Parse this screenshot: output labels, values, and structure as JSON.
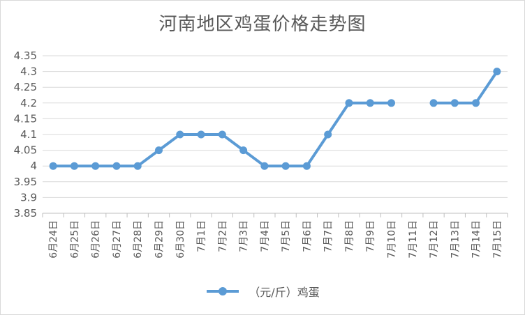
{
  "chart_data": {
    "type": "line",
    "title": "河南地区鸡蛋价格走势图",
    "xlabel": "",
    "ylabel": "",
    "categories": [
      "6月24日",
      "6月25日",
      "6月26日",
      "6月27日",
      "6月28日",
      "6月29日",
      "6月30日",
      "7月1日",
      "7月2日",
      "7月3日",
      "7月4日",
      "7月5日",
      "7月6日",
      "7月7日",
      "7月8日",
      "7月9日",
      "7月10日",
      "7月11日",
      "7月12日",
      "7月13日",
      "7月14日",
      "7月15日"
    ],
    "series": [
      {
        "name": "（元/斤）鸡蛋",
        "values": [
          4.0,
          4.0,
          4.0,
          4.0,
          4.0,
          4.05,
          4.1,
          4.1,
          4.1,
          4.05,
          4.0,
          4.0,
          4.0,
          4.1,
          4.2,
          4.2,
          4.2,
          null,
          4.2,
          4.2,
          4.2,
          4.3
        ],
        "color": "#5b9bd5"
      }
    ],
    "ylim": [
      3.85,
      4.35
    ],
    "yticks": [
      3.85,
      3.9,
      3.95,
      4.0,
      4.05,
      4.1,
      4.15,
      4.2,
      4.25,
      4.3,
      4.35
    ],
    "ytick_labels": [
      "3.85",
      "3.9",
      "3.95",
      "4",
      "4.05",
      "4.1",
      "4.15",
      "4.2",
      "4.25",
      "4.3",
      "4.35"
    ],
    "grid": true,
    "legend": "bottom"
  }
}
